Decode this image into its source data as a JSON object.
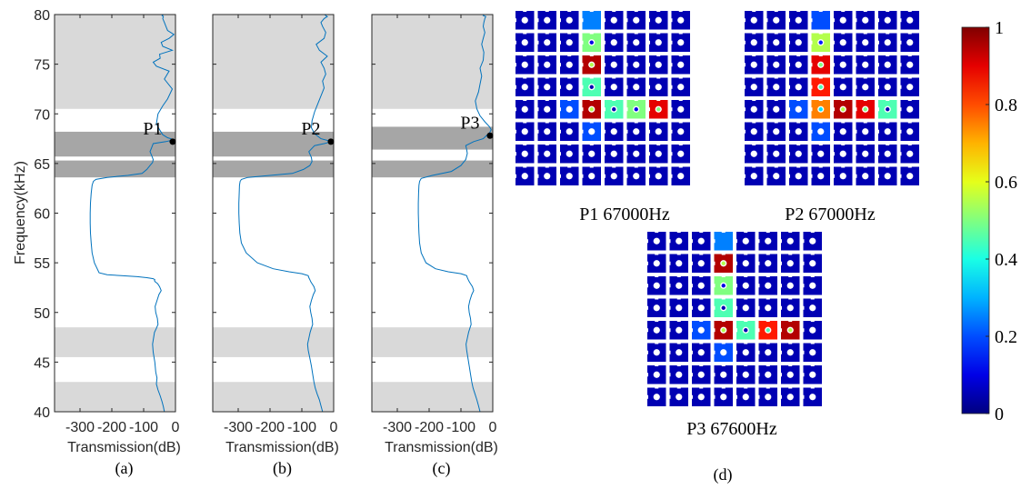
{
  "chart_data": [
    {
      "type": "line",
      "panel_label": "(a)",
      "point_label": "P1",
      "ylabel": "Frequency(kHz)",
      "xlabel": "Transmission(dB)",
      "xlim": [
        -380,
        0
      ],
      "ylim": [
        40,
        80
      ],
      "xticks": [
        "-300",
        "-200",
        "-100",
        "0"
      ],
      "yticks": [
        "40",
        "45",
        "50",
        "55",
        "60",
        "65",
        "70",
        "75",
        "80"
      ],
      "light_bands": [
        [
          40,
          43
        ],
        [
          45.5,
          48.5
        ],
        [
          70.5,
          80
        ]
      ],
      "dark_bands": [
        [
          63.6,
          65.3
        ],
        [
          65.7,
          68.2
        ]
      ],
      "marker": {
        "x": -3,
        "y": 67.2
      },
      "series": [
        {
          "x": [
            -35,
            -38,
            -42,
            -48,
            -55,
            -60,
            -58,
            -62,
            -65,
            -70,
            -72,
            -68,
            -66,
            -60,
            -55,
            -57,
            -62,
            -64,
            -58,
            -52,
            -45,
            -50,
            -56,
            -60,
            -64,
            -66,
            -65,
            -70,
            -90,
            -120,
            -170,
            -215,
            -240,
            -255,
            -262,
            -265,
            -267,
            -268,
            -268,
            -267,
            -265,
            -262,
            -258,
            -250,
            -215,
            -150,
            -105,
            -90,
            -80,
            -72,
            -70,
            -75,
            -80,
            -75,
            -70,
            -30,
            -5,
            -25,
            -40,
            -50,
            -60,
            -55,
            -40,
            -25,
            -10,
            -35,
            -20,
            -60,
            -70,
            -48,
            -50,
            -10,
            -40,
            -45,
            -20,
            -5,
            -25,
            -30,
            -35,
            -40,
            -38,
            -42,
            -38,
            -35
          ],
          "y": [
            40,
            40.5,
            41,
            41.6,
            42.2,
            42.8,
            43.4,
            44,
            45,
            46,
            46.8,
            47.6,
            48,
            48.4,
            48.8,
            49.4,
            50,
            50.6,
            51.2,
            51.8,
            52.2,
            52.6,
            52.9,
            53.0,
            53.1,
            53.2,
            53.3,
            53.4,
            53.5,
            53.6,
            53.7,
            53.8,
            54,
            55,
            56,
            57,
            58,
            59,
            60,
            61,
            62,
            62.8,
            63.2,
            63.4,
            63.6,
            63.8,
            64.0,
            64.4,
            64.8,
            65.1,
            65.4,
            65.8,
            66.2,
            66.6,
            67.0,
            67.2,
            67.4,
            67.6,
            67.9,
            68.4,
            69,
            70,
            70.8,
            71.5,
            72.5,
            73.5,
            74.3,
            74.8,
            75.2,
            75.6,
            76.0,
            76.4,
            76.8,
            77.2,
            77.6,
            78,
            78.4,
            78.8,
            79.2,
            79.6,
            79.8,
            79.9,
            80,
            80
          ]
        }
      ]
    },
    {
      "type": "line",
      "panel_label": "(b)",
      "point_label": "P2",
      "xlabel": "Transmission(dB)",
      "xlim": [
        -380,
        0
      ],
      "ylim": [
        40,
        80
      ],
      "xticks": [
        "-300",
        "-200",
        "-100",
        "0"
      ],
      "light_bands": [
        [
          40,
          43
        ],
        [
          45.5,
          48.5
        ],
        [
          70.5,
          80
        ]
      ],
      "dark_bands": [
        [
          63.6,
          65.3
        ],
        [
          65.7,
          68.2
        ]
      ],
      "marker": {
        "x": -3,
        "y": 67.2
      },
      "series": [
        {
          "x": [
            -35,
            -40,
            -45,
            -52,
            -58,
            -62,
            -66,
            -70,
            -75,
            -80,
            -82,
            -78,
            -74,
            -70,
            -66,
            -68,
            -72,
            -75,
            -70,
            -64,
            -58,
            -62,
            -68,
            -72,
            -75,
            -78,
            -80,
            -100,
            -140,
            -190,
            -240,
            -275,
            -290,
            -295,
            -297,
            -298,
            -298,
            -297,
            -296,
            -294,
            -290,
            -270,
            -200,
            -130,
            -95,
            -75,
            -68,
            -70,
            -78,
            -60,
            -30,
            -6,
            -40,
            -60,
            -70,
            -68,
            -60,
            -50,
            -40,
            -30,
            -35,
            -25,
            -30,
            -40,
            -20,
            -45,
            -55,
            -30,
            -25,
            -35,
            -40,
            -30,
            -20,
            -25,
            -28
          ],
          "y": [
            40,
            40.6,
            41.2,
            41.8,
            42.4,
            43,
            43.8,
            44.6,
            45.4,
            46.2,
            46.8,
            47.4,
            48,
            48.4,
            48.8,
            49.4,
            50,
            50.6,
            51.2,
            51.8,
            52.2,
            52.6,
            52.9,
            53.1,
            53.3,
            53.5,
            53.7,
            53.9,
            54.1,
            54.4,
            55,
            56,
            57,
            58,
            59,
            60,
            61,
            62,
            62.8,
            63.2,
            63.4,
            63.6,
            63.8,
            64.0,
            64.4,
            64.8,
            65.2,
            65.6,
            66.2,
            66.8,
            67.0,
            67.2,
            67.5,
            68,
            68.6,
            69.3,
            70.2,
            71,
            71.8,
            72.6,
            73.3,
            74,
            74.6,
            75.2,
            75.8,
            76.4,
            77,
            77.6,
            78.2,
            78.8,
            79.2,
            79.6,
            79.8,
            79.9,
            80
          ]
        }
      ]
    },
    {
      "type": "line",
      "panel_label": "(c)",
      "point_label": "P3",
      "xlabel": "Transmission(dB)",
      "xlim": [
        -380,
        0
      ],
      "ylim": [
        40,
        80
      ],
      "xticks": [
        "-300",
        "-200",
        "-100",
        "0"
      ],
      "light_bands": [
        [
          40,
          43
        ],
        [
          45.5,
          48.5
        ],
        [
          70.5,
          80
        ]
      ],
      "dark_bands": [
        [
          63.6,
          65.3
        ],
        [
          66.4,
          68.7
        ]
      ],
      "marker": {
        "x": -3,
        "y": 67.8
      },
      "series": [
        {
          "x": [
            -40,
            -45,
            -50,
            -56,
            -62,
            -66,
            -70,
            -74,
            -78,
            -82,
            -84,
            -80,
            -76,
            -72,
            -68,
            -70,
            -74,
            -76,
            -72,
            -66,
            -60,
            -64,
            -70,
            -74,
            -77,
            -80,
            -82,
            -100,
            -140,
            -180,
            -210,
            -225,
            -230,
            -232,
            -233,
            -234,
            -234,
            -233,
            -232,
            -230,
            -225,
            -190,
            -130,
            -100,
            -85,
            -80,
            -82,
            -85,
            -60,
            -30,
            -20,
            -10,
            -5,
            -10,
            -25,
            -40,
            -50,
            -55,
            -45,
            -40,
            -35,
            -40,
            -30,
            -28,
            -35,
            -30,
            -25,
            -30,
            -28,
            -25,
            -22,
            -30,
            -28,
            -30
          ],
          "y": [
            40,
            40.6,
            41.2,
            41.8,
            42.4,
            43,
            43.8,
            44.6,
            45.4,
            46.2,
            46.8,
            47.4,
            48,
            48.4,
            48.8,
            49.4,
            50,
            50.6,
            51.2,
            51.8,
            52.2,
            52.6,
            52.9,
            53.1,
            53.3,
            53.5,
            53.7,
            53.9,
            54.1,
            54.4,
            55,
            56,
            57,
            58,
            59,
            60,
            61,
            62,
            62.8,
            63.2,
            63.5,
            63.8,
            64.2,
            64.8,
            65.4,
            66,
            66.4,
            66.8,
            67.2,
            67.5,
            67.8,
            68.1,
            68.4,
            68.7,
            69.2,
            69.8,
            70.5,
            71.3,
            72.2,
            73,
            73.8,
            74.6,
            75.4,
            76.2,
            77,
            77.6,
            78.2,
            78.8,
            79.2,
            79.6,
            79.8,
            79.9,
            80,
            80
          ]
        }
      ]
    },
    {
      "type": "heatmap",
      "panel_label": "(d)",
      "colorbar_ticks": [
        "0",
        "0.2",
        "0.4",
        "0.6",
        "0.8",
        "1"
      ],
      "colorbar_range": [
        0,
        1
      ],
      "maps": [
        {
          "caption": "P1 67000Hz",
          "highlight": [
            [
              0,
              3,
              0.25
            ],
            [
              1,
              3,
              0.5
            ],
            [
              2,
              3,
              0.95
            ],
            [
              3,
              3,
              0.45
            ],
            [
              4,
              3,
              0.95
            ],
            [
              4,
              4,
              0.45
            ],
            [
              4,
              5,
              0.5
            ],
            [
              4,
              6,
              0.9
            ],
            [
              5,
              3,
              0.2
            ],
            [
              4,
              2,
              0.2
            ]
          ]
        },
        {
          "caption": "P2 67000Hz",
          "highlight": [
            [
              0,
              3,
              0.2
            ],
            [
              1,
              3,
              0.55
            ],
            [
              2,
              3,
              0.9
            ],
            [
              3,
              3,
              0.85
            ],
            [
              4,
              3,
              0.75
            ],
            [
              4,
              4,
              0.95
            ],
            [
              4,
              5,
              0.9
            ],
            [
              4,
              6,
              0.45
            ],
            [
              5,
              3,
              0.2
            ],
            [
              4,
              2,
              0.2
            ]
          ]
        },
        {
          "caption": "P3 67600Hz",
          "highlight": [
            [
              0,
              3,
              0.25
            ],
            [
              1,
              3,
              0.95
            ],
            [
              2,
              3,
              0.5
            ],
            [
              3,
              3,
              0.45
            ],
            [
              4,
              3,
              0.95
            ],
            [
              4,
              4,
              0.45
            ],
            [
              4,
              5,
              0.85
            ],
            [
              4,
              6,
              0.95
            ],
            [
              5,
              3,
              0.2
            ],
            [
              4,
              2,
              0.2
            ]
          ]
        }
      ]
    }
  ]
}
